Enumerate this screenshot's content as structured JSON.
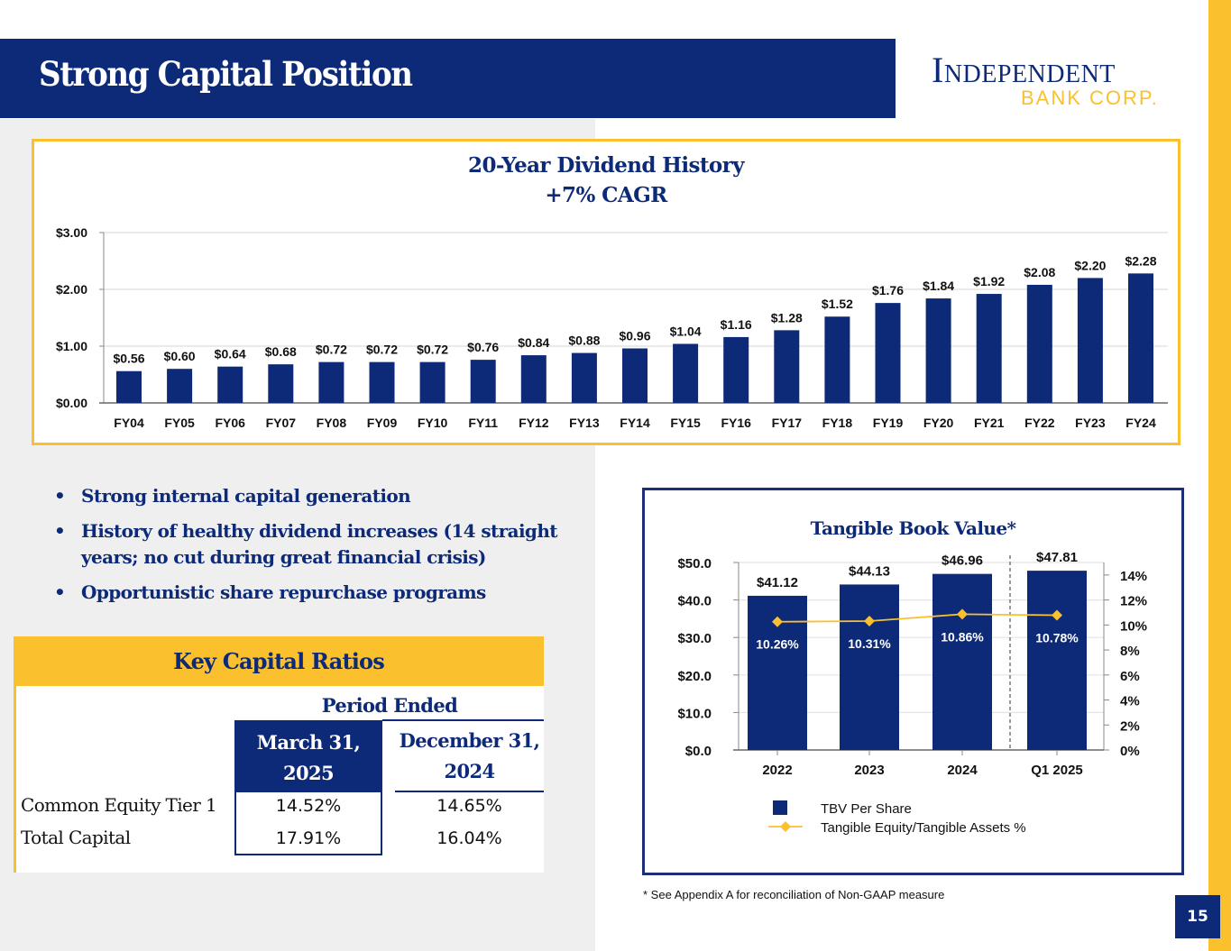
{
  "header": {
    "title": "Strong Capital Position",
    "logo_main": "Independent",
    "logo_sub": "BANK CORP."
  },
  "colors": {
    "navy": "#0d2a78",
    "gold": "#fbc02d",
    "gray_bg": "#efefef"
  },
  "bullets": [
    "Strong internal capital generation",
    "History of healthy dividend increases (14 straight years; no cut during great financial crisis)",
    "Opportunistic share repurchase programs"
  ],
  "ratios": {
    "title": "Key Capital Ratios",
    "period_label": "Period Ended",
    "columns": [
      {
        "line1": "March 31,",
        "line2": "2025"
      },
      {
        "line1": "December 31,",
        "line2": "2024"
      }
    ],
    "rows": [
      {
        "label": "Common Equity Tier 1",
        "values": [
          "14.52%",
          "14.65%"
        ]
      },
      {
        "label": "Total Capital",
        "values": [
          "17.91%",
          "16.04%"
        ]
      }
    ]
  },
  "footnote": "* See Appendix A for reconciliation of Non-GAAP measure",
  "page_number": "15",
  "chart_data": [
    {
      "type": "bar",
      "title": "20-Year Dividend History",
      "subtitle": "+7% CAGR",
      "xlabel": "",
      "ylabel": "",
      "ylim": [
        0,
        3
      ],
      "yticks": [
        "$0.00",
        "$1.00",
        "$2.00",
        "$3.00"
      ],
      "ytick_values": [
        0,
        1,
        2,
        3
      ],
      "grid": true,
      "categories": [
        "FY04",
        "FY05",
        "FY06",
        "FY07",
        "FY08",
        "FY09",
        "FY10",
        "FY11",
        "FY12",
        "FY13",
        "FY14",
        "FY15",
        "FY16",
        "FY17",
        "FY18",
        "FY19",
        "FY20",
        "FY21",
        "FY22",
        "FY23",
        "FY24"
      ],
      "values": [
        0.56,
        0.6,
        0.64,
        0.68,
        0.72,
        0.72,
        0.72,
        0.76,
        0.84,
        0.88,
        0.96,
        1.04,
        1.16,
        1.28,
        1.52,
        1.76,
        1.84,
        1.92,
        2.08,
        2.2,
        2.28
      ],
      "labels": [
        "$0.56",
        "$0.60",
        "$0.64",
        "$0.68",
        "$0.72",
        "$0.72",
        "$0.72",
        "$0.76",
        "$0.84",
        "$0.88",
        "$0.96",
        "$1.04",
        "$1.16",
        "$1.28",
        "$1.52",
        "$1.76",
        "$1.84",
        "$1.92",
        "$2.08",
        "$2.20",
        "$2.28"
      ]
    },
    {
      "type": "bar",
      "title": "Tangible Book Value*",
      "categories": [
        "2022",
        "2023",
        "2024",
        "Q1 2025"
      ],
      "ylim": [
        0,
        50
      ],
      "yticks": [
        "$0.0",
        "$10.0",
        "$20.0",
        "$30.0",
        "$40.0",
        "$50.0"
      ],
      "ytick_values": [
        0,
        10,
        20,
        30,
        40,
        50
      ],
      "y2lim": [
        0,
        15
      ],
      "y2ticks": [
        "0%",
        "2%",
        "4%",
        "6%",
        "8%",
        "10%",
        "12%",
        "14%"
      ],
      "y2tick_values": [
        0,
        2,
        4,
        6,
        8,
        10,
        12,
        14
      ],
      "grid": true,
      "separator_before": "Q1 2025",
      "series": [
        {
          "name": "TBV Per Share",
          "type": "bar",
          "axis": "left",
          "values": [
            41.12,
            44.13,
            46.96,
            47.81
          ],
          "labels": [
            "$41.12",
            "$44.13",
            "$46.96",
            "$47.81"
          ]
        },
        {
          "name": "Tangible Equity/Tangible Assets %",
          "type": "line",
          "axis": "right",
          "values": [
            10.26,
            10.31,
            10.86,
            10.78
          ],
          "labels": [
            "10.26%",
            "10.31%",
            "10.86%",
            "10.78%"
          ]
        }
      ],
      "legend": "bottom"
    }
  ]
}
